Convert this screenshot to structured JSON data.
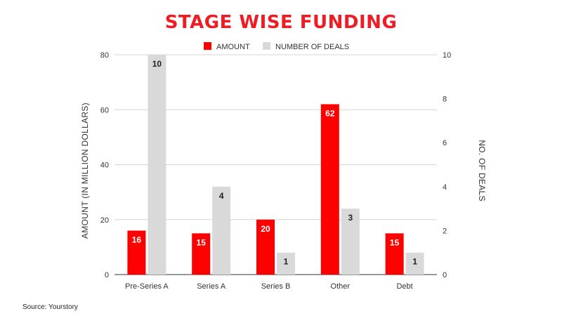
{
  "chart_data": {
    "type": "bar",
    "title": "STAGE WISE FUNDING",
    "categories": [
      "Pre-Series A",
      "Series A",
      "Series B",
      "Other",
      "Debt"
    ],
    "series": [
      {
        "name": "AMOUNT",
        "axis": "left",
        "values": [
          16,
          15,
          20,
          62,
          15
        ],
        "color": "#ff0000",
        "label_color": "#ffffff"
      },
      {
        "name": "NUMBER OF DEALS",
        "axis": "right",
        "values": [
          10,
          4,
          1,
          3,
          1
        ],
        "color": "#d9d9d9",
        "label_color": "#222222"
      }
    ],
    "ylabel": "AMOUNT (IN MILLION DOLLARS)",
    "y2label": "NO. OF DEALS",
    "ylim": [
      0,
      80
    ],
    "y_ticks": [
      "0",
      "20",
      "40",
      "60",
      "80"
    ],
    "y2lim": [
      0,
      10
    ],
    "y2_ticks": [
      "0",
      "2",
      "4",
      "6",
      "8",
      "10"
    ],
    "legend": "top",
    "grid": true
  },
  "source": "Source: Yourstory"
}
